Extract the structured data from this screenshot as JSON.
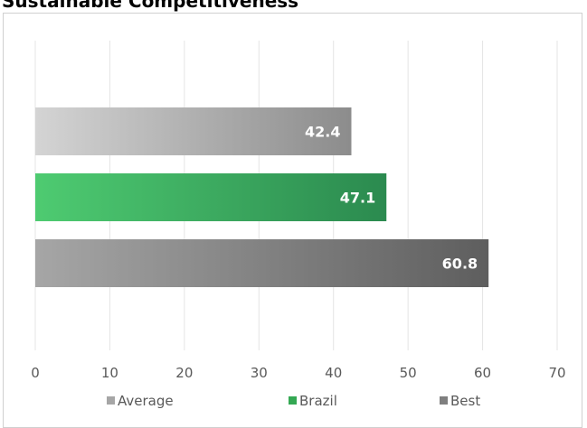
{
  "chart_data": {
    "type": "bar",
    "orientation": "horizontal",
    "title": "Sustainable Competitiveness",
    "categories": [
      "Average",
      "Brazil",
      "Best"
    ],
    "values": [
      42.4,
      47.1,
      60.8
    ],
    "value_labels": [
      "42.4",
      "47.1",
      "60.8"
    ],
    "xlim": [
      0,
      70
    ],
    "x_ticks": [
      0,
      10,
      20,
      30,
      40,
      50,
      60,
      70
    ],
    "grid": true,
    "legend_position": "bottom",
    "colors": {
      "Average": [
        "#d4d4d4",
        "#8c8c8c"
      ],
      "Brazil": [
        "#4ecb71",
        "#2b8a4f"
      ],
      "Best": [
        "#a6a6a6",
        "#5e5e5e"
      ]
    },
    "legend_colors": {
      "Average": "#a6a6a6",
      "Brazil": "#34a853",
      "Best": "#7f7f7f"
    }
  }
}
